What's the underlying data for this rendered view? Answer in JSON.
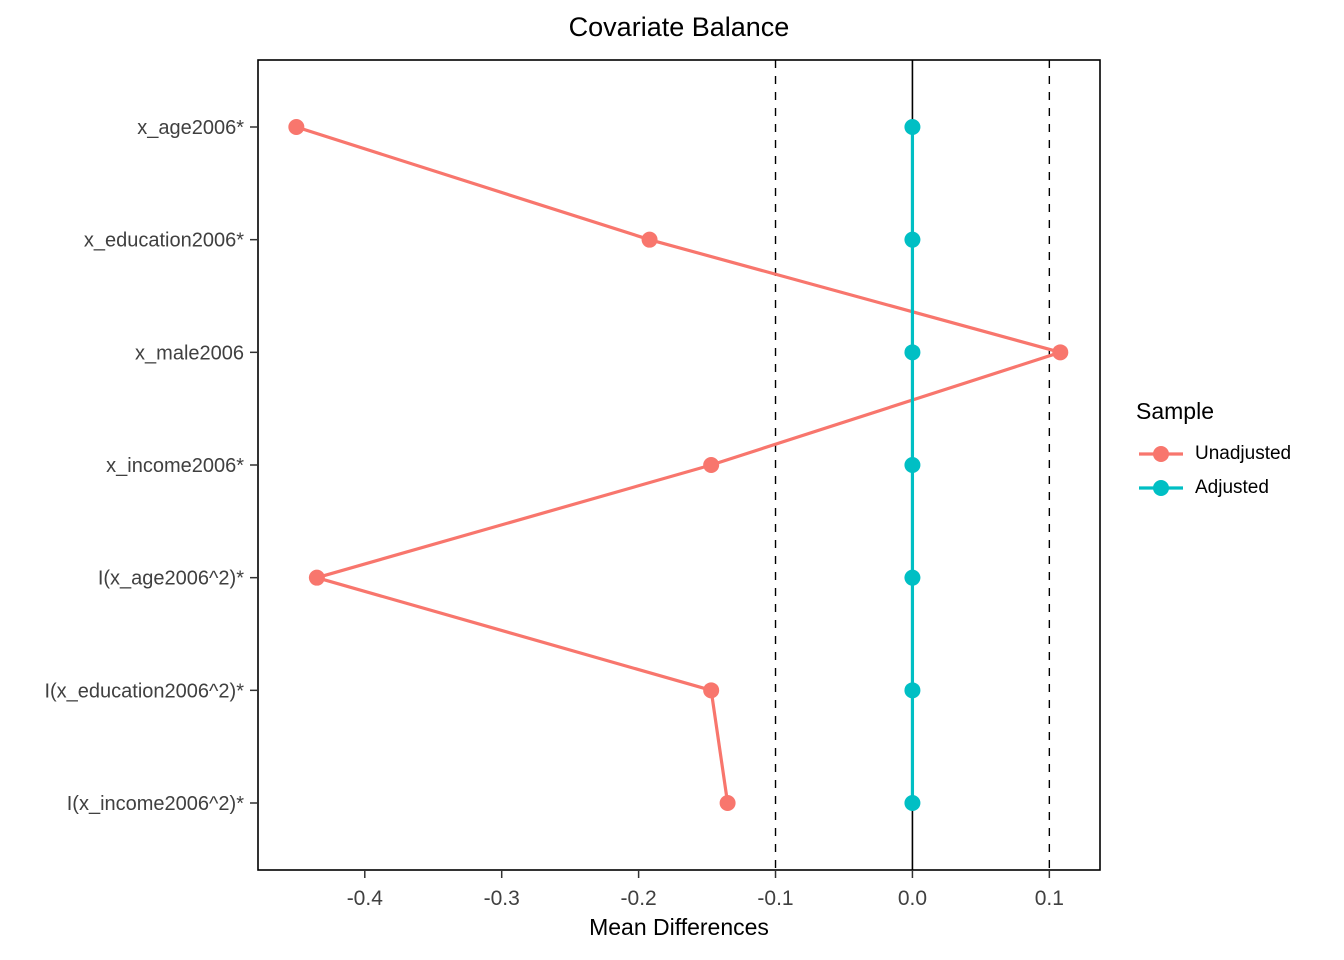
{
  "chart_data": {
    "type": "line",
    "title": "Covariate Balance",
    "xlabel": "Mean Differences",
    "legend_title": "Sample",
    "orientation": "horizontal-categories",
    "categories": [
      "x_age2006*",
      "x_education2006*",
      "x_male2006",
      "x_income2006*",
      "I(x_age2006^2)*",
      "I(x_education2006^2)*",
      "I(x_income2006^2)*"
    ],
    "series": [
      {
        "name": "Unadjusted",
        "color": "#F8766D",
        "values": [
          -0.45,
          -0.192,
          0.108,
          -0.147,
          -0.435,
          -0.147,
          -0.135
        ]
      },
      {
        "name": "Adjusted",
        "color": "#00BFC4",
        "values": [
          0.0,
          0.0,
          0.0,
          0.0,
          0.0,
          0.0,
          0.0
        ]
      }
    ],
    "x_ticks": [
      -0.4,
      -0.3,
      -0.2,
      -0.1,
      0.0,
      0.1
    ],
    "x_tick_labels": [
      "-0.4",
      "-0.3",
      "-0.2",
      "-0.1",
      "0.0",
      "0.1"
    ],
    "xlim": [
      -0.478,
      0.137
    ],
    "reference_lines": {
      "solid": [
        0
      ],
      "dashed": [
        -0.1,
        0.1
      ]
    },
    "legend_position": "right",
    "grid": false,
    "panel_border_color": "#000000",
    "axis_text_color": "#404040"
  }
}
